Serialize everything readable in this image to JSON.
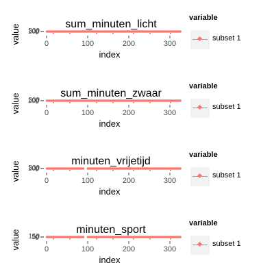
{
  "legend": {
    "title": "variable",
    "entry": "subset 1",
    "color": "#f8766d"
  },
  "chart_data": [
    {
      "type": "scatter",
      "title": "sum_minuten_licht",
      "xlabel": "index",
      "ylabel": "value",
      "x_ticks": [
        0,
        100,
        200,
        300
      ],
      "y_tick_labels": [
        "300",
        "100",
        "0"
      ],
      "xlim": [
        0,
        325
      ],
      "series": [
        {
          "name": "subset 1",
          "x_range": [
            1,
            325
          ],
          "value": 300
        }
      ],
      "gaps": [],
      "grid": false,
      "legend": "right"
    },
    {
      "type": "scatter",
      "title": "sum_minuten_zwaar",
      "xlabel": "index",
      "ylabel": "value",
      "x_ticks": [
        0,
        100,
        200,
        300
      ],
      "y_tick_labels": [
        "300",
        "100",
        "0"
      ],
      "xlim": [
        0,
        325
      ],
      "series": [
        {
          "name": "subset 1",
          "x_range": [
            1,
            325
          ],
          "value": 300
        }
      ],
      "gaps": [],
      "grid": false,
      "legend": "right"
    },
    {
      "type": "scatter",
      "title": "minuten_vrijetijd",
      "xlabel": "index",
      "ylabel": "value",
      "x_ticks": [
        0,
        100,
        200,
        300
      ],
      "y_tick_labels": [
        "300",
        "100",
        "0"
      ],
      "xlim": [
        0,
        325
      ],
      "series": [
        {
          "name": "subset 1",
          "x_range": [
            1,
            325
          ],
          "value": 300
        }
      ],
      "gaps": [
        [
          90,
          98
        ]
      ],
      "grid": false,
      "legend": "right"
    },
    {
      "type": "scatter",
      "title": "minuten_sport",
      "xlabel": "index",
      "ylabel": "value",
      "x_ticks": [
        0,
        100,
        200,
        300
      ],
      "y_tick_labels": [
        "150",
        "50",
        "0"
      ],
      "xlim": [
        0,
        325
      ],
      "series": [
        {
          "name": "subset 1",
          "x_range": [
            1,
            325
          ],
          "value": 150
        }
      ],
      "gaps": [
        [
          90,
          98
        ]
      ],
      "grid": false,
      "legend": "right"
    }
  ]
}
